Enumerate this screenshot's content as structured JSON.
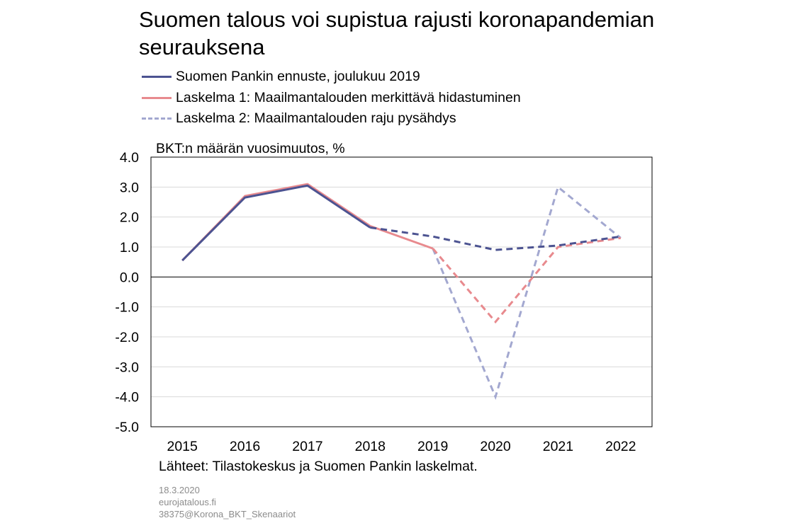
{
  "title": "Suomen talous voi supistua rajusti koronapandemian seurauksena",
  "source": "Lähteet: Tilastokeskus ja Suomen Pankin laskelmat.",
  "meta": {
    "date": "18.3.2020",
    "site": "eurojatalous.fi",
    "code": "38375@Korona_BKT_Skenaariot"
  },
  "chart_data": {
    "type": "line",
    "ylabel": "BKT:n määrän vuosimuutos, %",
    "categories": [
      "2015",
      "2016",
      "2017",
      "2018",
      "2019",
      "2020",
      "2021",
      "2022"
    ],
    "ylim": [
      -5,
      4
    ],
    "yticks": [
      "4.0",
      "3.0",
      "2.0",
      "1.0",
      "0.0",
      "-1.0",
      "-2.0",
      "-3.0",
      "-4.0",
      "-5.0"
    ],
    "grid": true,
    "legend_position": "top-left",
    "series": [
      {
        "name": "Suomen Pankin ennuste, joulukuu 2019",
        "color": "#4c5391",
        "style": "solid-then-dashed",
        "dash_from_index": 3,
        "values": [
          0.55,
          2.65,
          3.05,
          1.65,
          1.35,
          0.9,
          1.05,
          1.35
        ]
      },
      {
        "name": "Laskelma 1: Maailmantalouden merkittävä hidastuminen",
        "color": "#e88a8e",
        "style": "solid-then-dashed",
        "dash_from_index": 4,
        "values": [
          0.55,
          2.7,
          3.1,
          1.7,
          0.95,
          -1.5,
          1.0,
          1.3
        ]
      },
      {
        "name": "Laskelma 2: Maailmantalouden raju pysähdys",
        "color": "#a3a8d0",
        "style": "dashed",
        "start_index": 4,
        "values": [
          null,
          null,
          null,
          null,
          0.95,
          -4.0,
          3.0,
          1.3
        ]
      }
    ]
  }
}
